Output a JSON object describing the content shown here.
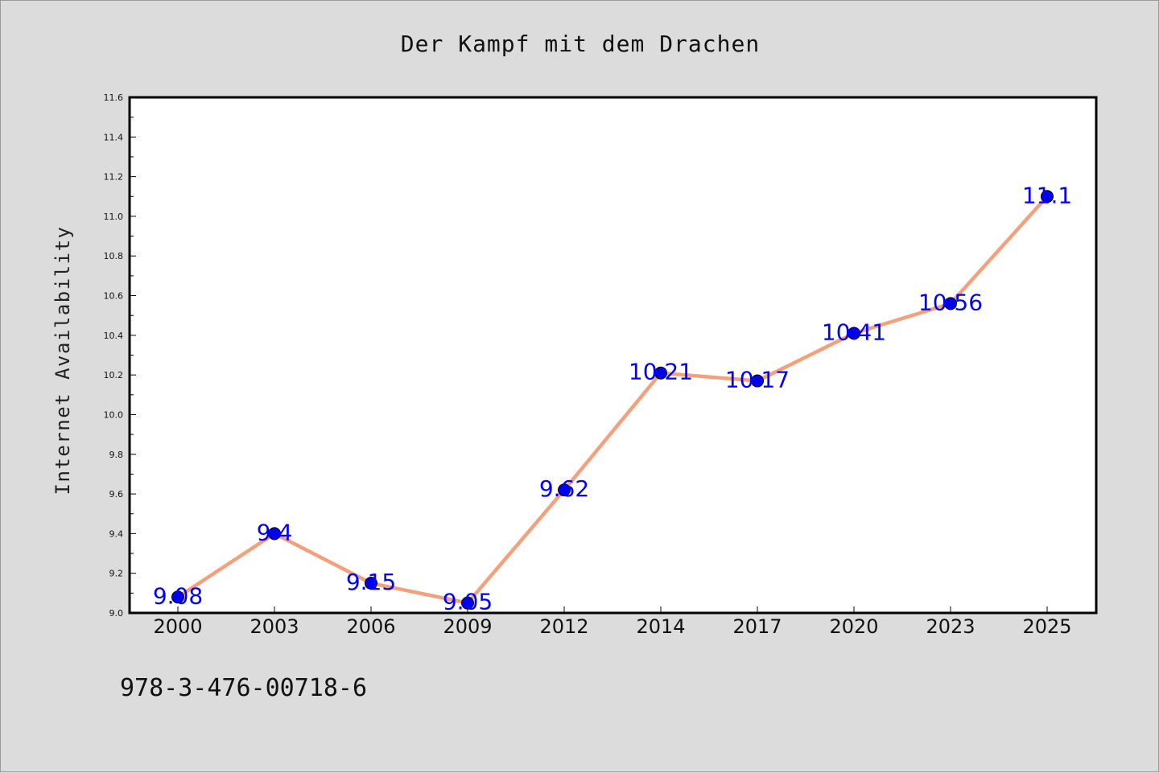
{
  "footer_code": "978-3-476-00718-6",
  "chart_data": {
    "type": "line",
    "title": "Der Kampf mit dem Drachen",
    "xlabel": "",
    "ylabel": "Internet Availability",
    "categories": [
      "2000",
      "2003",
      "2006",
      "2009",
      "2012",
      "2014",
      "2017",
      "2020",
      "2023",
      "2025"
    ],
    "values": [
      9.08,
      9.4,
      9.15,
      9.05,
      9.62,
      10.21,
      10.17,
      10.41,
      10.56,
      11.1
    ],
    "data_labels": [
      "9.08",
      "9.4",
      "9.15",
      "9.05",
      "9.62",
      "10.21",
      "10.17",
      "10.41",
      "10.56",
      "11.1"
    ],
    "ylim": [
      9.0,
      11.6
    ],
    "yticks": [
      "9.0",
      "9.2",
      "9.4",
      "9.6",
      "9.8",
      "10.0",
      "10.2",
      "10.4",
      "10.6",
      "10.8",
      "11.0",
      "11.2",
      "11.4",
      "11.6"
    ],
    "grid": false,
    "legend": "none",
    "line_color": "#f4a07c",
    "marker_color": "#0000ee",
    "label_color": "#0000ff",
    "background": "#dcdcdc",
    "plot_background": "#ffffff"
  }
}
